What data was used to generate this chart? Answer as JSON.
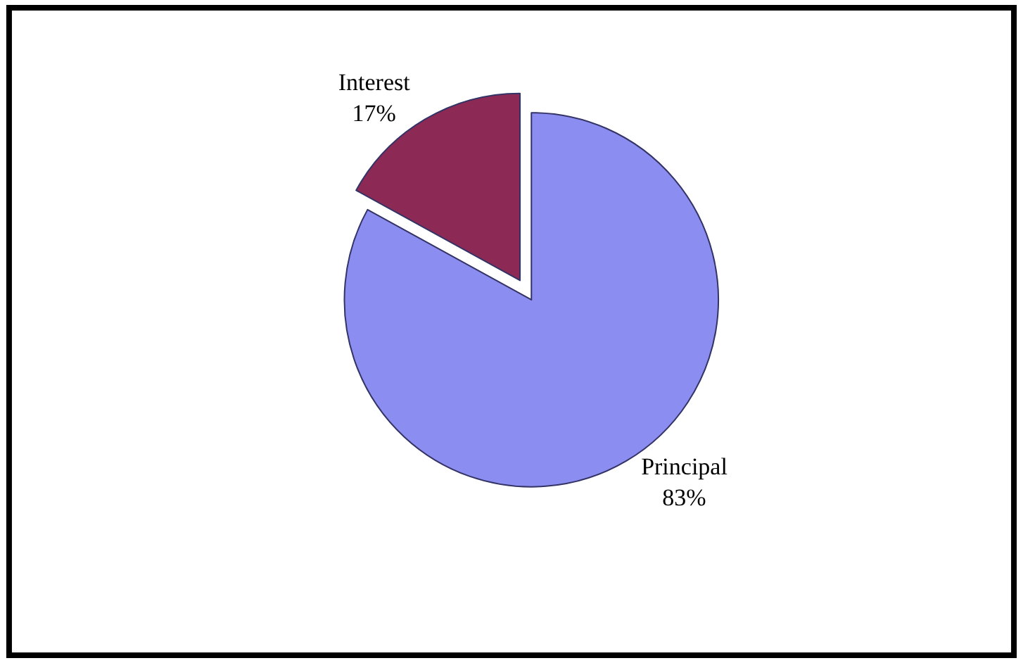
{
  "chart_data": {
    "type": "pie",
    "categories": [
      "Principal",
      "Interest"
    ],
    "values": [
      83,
      17
    ],
    "value_labels": [
      "83%",
      "17%"
    ],
    "colors": [
      "#8b8ef0",
      "#8c2a55"
    ],
    "legend": false
  }
}
